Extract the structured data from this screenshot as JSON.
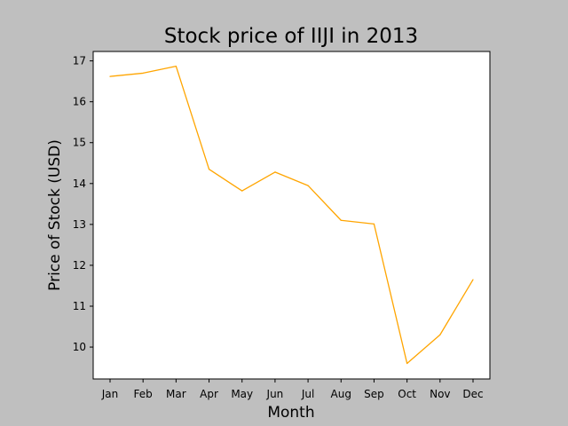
{
  "colors": {
    "figure_background": "#bfbfbf",
    "plot_background": "#ffffff",
    "line": "#ffa500",
    "axes": "#000000"
  },
  "chart_data": {
    "type": "line",
    "title": "Stock price of IIJI in 2013",
    "xlabel": "Month",
    "ylabel": "Price of Stock (USD)",
    "categories": [
      "Jan",
      "Feb",
      "Mar",
      "Apr",
      "May",
      "Jun",
      "Jul",
      "Aug",
      "Sep",
      "Oct",
      "Nov",
      "Dec"
    ],
    "series": [
      {
        "values": [
          16.62,
          16.7,
          16.87,
          14.35,
          13.82,
          14.28,
          13.95,
          13.1,
          13.01,
          9.6,
          10.3,
          11.65
        ]
      }
    ],
    "ylim": [
      9.22,
      17.23
    ],
    "yticks": [
      10,
      11,
      12,
      13,
      14,
      15,
      16,
      17
    ],
    "grid": false,
    "legend": "none"
  }
}
